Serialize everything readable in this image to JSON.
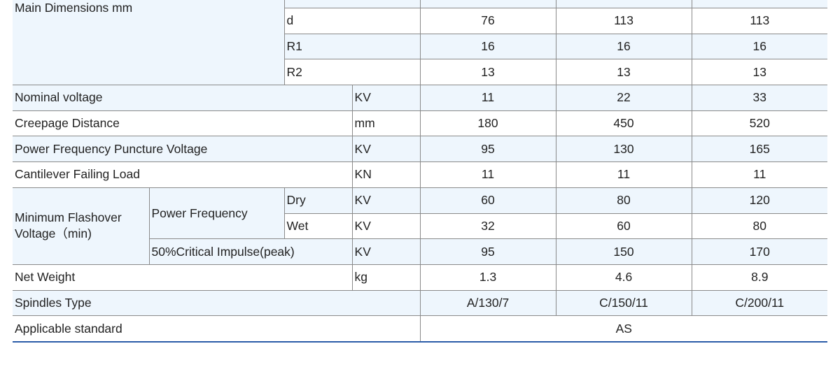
{
  "main_dimensions": {
    "label": "Main Dimensions mm",
    "rows": [
      {
        "label": "d",
        "values": [
          "76",
          "113",
          "113"
        ]
      },
      {
        "label": "R1",
        "values": [
          "16",
          "16",
          "16"
        ]
      },
      {
        "label": "R2",
        "values": [
          "13",
          "13",
          "13"
        ]
      }
    ]
  },
  "nominal_voltage": {
    "label": "Nominal voltage",
    "unit": "KV",
    "values": [
      "11",
      "22",
      "33"
    ]
  },
  "creepage": {
    "label": "Creepage Distance",
    "unit": "mm",
    "values": [
      "180",
      "450",
      "520"
    ]
  },
  "puncture": {
    "label": "Power Frequency Puncture Voltage",
    "unit": "KV",
    "values": [
      "95",
      "130",
      "165"
    ]
  },
  "cantilever": {
    "label": "Cantilever Failing Load",
    "unit": "KN",
    "values": [
      "11",
      "11",
      "11"
    ]
  },
  "flashover": {
    "label": "Minimum Flashover Voltage（min)",
    "power_frequency": "Power Frequency",
    "dry": {
      "label": "Dry",
      "unit": "KV",
      "values": [
        "60",
        "80",
        "120"
      ]
    },
    "wet": {
      "label": "Wet",
      "unit": "KV",
      "values": [
        "32",
        "60",
        "80"
      ]
    },
    "impulse": {
      "label": "50%Critical Impulse(peak)",
      "unit": "KV",
      "values": [
        "95",
        "150",
        "170"
      ]
    }
  },
  "net_weight": {
    "label": "Net Weight",
    "unit": "kg",
    "values": [
      "1.3",
      "4.6",
      "8.9"
    ]
  },
  "spindles": {
    "label": "Spindles Type",
    "values": [
      "A/130/7",
      "C/150/11",
      "C/200/11"
    ]
  },
  "standard": {
    "label": "Applicable standard",
    "value": "AS"
  },
  "colors": {
    "row_alt": "#eef6fd",
    "border": "#8a8a8a",
    "bottom_rule": "#2b5ca8"
  }
}
